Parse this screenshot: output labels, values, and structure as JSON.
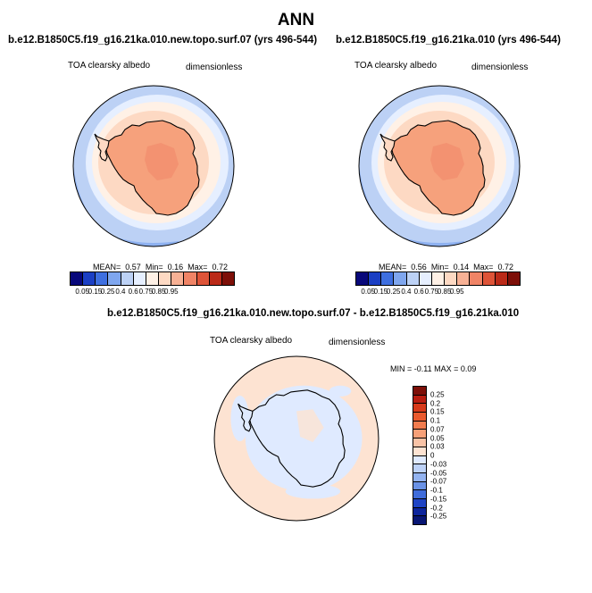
{
  "page": {
    "title": "ANN"
  },
  "panels": [
    {
      "case_title": "b.e12.B1850C5.f19_g16.21ka.010.new.topo.surf.07 (yrs 496-544)",
      "var_label": "TOA clearsky albedo",
      "units_label": "dimensionless",
      "stats": {
        "mean_label": "MEAN=",
        "mean": "0.57",
        "min_label": "Min=",
        "min": "0.16",
        "max_label": "Max=",
        "max": "0.72"
      }
    },
    {
      "case_title": "b.e12.B1850C5.f19_g16.21ka.010 (yrs 496-544)",
      "var_label": "TOA clearsky albedo",
      "units_label": "dimensionless",
      "stats": {
        "mean_label": "MEAN=",
        "mean": "0.56",
        "min_label": "Min=",
        "min": "0.14",
        "max_label": "Max=",
        "max": "0.72"
      }
    }
  ],
  "diff_panel": {
    "case_title": "b.e12.B1850C5.f19_g16.21ka.010.new.topo.surf.07 - b.e12.B1850C5.f19_g16.21ka.010",
    "var_label": "TOA clearsky albedo",
    "units_label": "dimensionless",
    "stats_text": "MIN = -0.11 MAX = 0.09"
  },
  "colorbar_abs": {
    "labels": [
      "0.05",
      "0.15",
      "0.25",
      "0.4",
      "0.6",
      "0.75",
      "0.85",
      "0.95"
    ],
    "colors": [
      "#08087a",
      "#1b3fc4",
      "#3e6fe0",
      "#7fa6ee",
      "#bcd1f5",
      "#e6efff",
      "#fff1e6",
      "#fdd9c3",
      "#f8b195",
      "#f08466",
      "#de5438",
      "#bb2a18",
      "#7d0f08"
    ]
  },
  "colorbar_diff": {
    "labels": [
      "0.25",
      "0.2",
      "0.15",
      "0.1",
      "0.07",
      "0.05",
      "0.03",
      "0",
      "-0.03",
      "-0.05",
      "-0.07",
      "-0.1",
      "-0.15",
      "-0.2",
      "-0.25"
    ],
    "colors": [
      "#7d0f08",
      "#b91d10",
      "#d73a1a",
      "#ea5a2e",
      "#f27c4e",
      "#f6a078",
      "#f9c3a6",
      "#fde3d2",
      "#dfeaff",
      "#bdd2f8",
      "#93b3f0",
      "#6a92e6",
      "#3f6cdb",
      "#1f44c5",
      "#0d259c",
      "#081674"
    ]
  },
  "colors": {
    "antarctica": "#f6a17c",
    "coast": "#000000"
  }
}
